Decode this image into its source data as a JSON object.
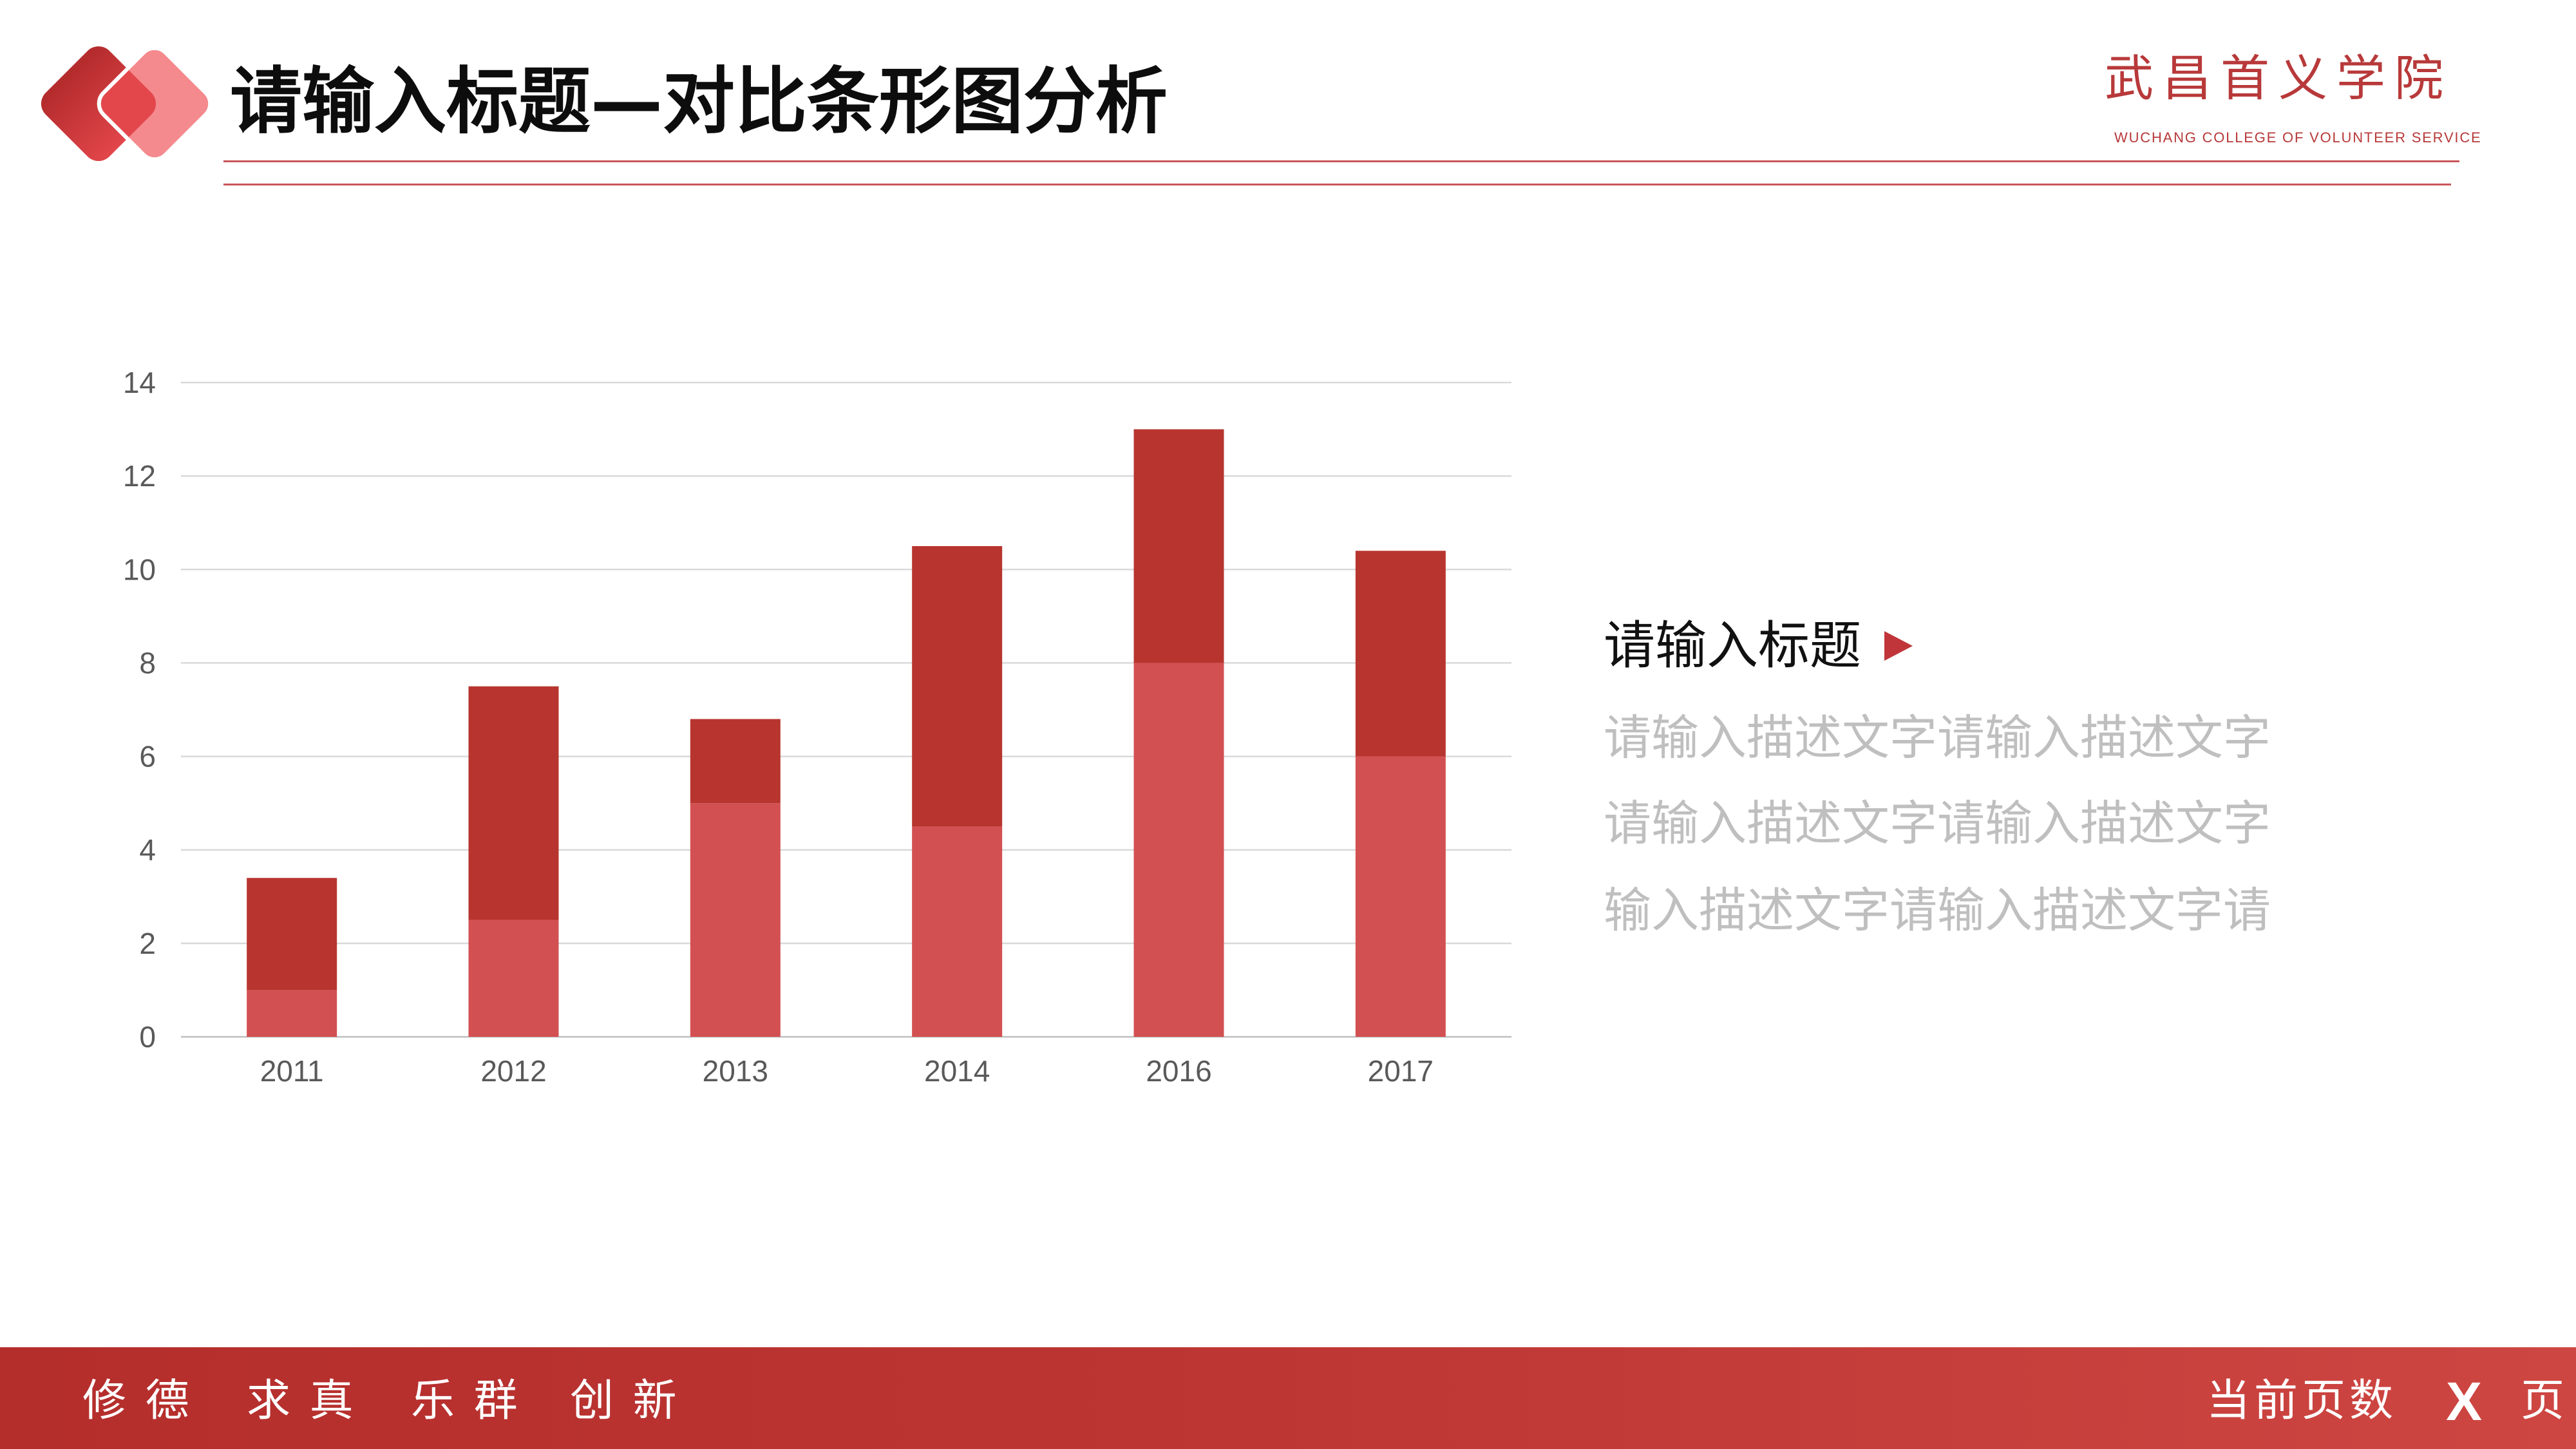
{
  "header": {
    "title": "请输入标题—对比条形图分析",
    "brand_name": "武昌首义学院",
    "brand_subtitle": "WUCHANG COLLEGE OF VOLUNTEER SERVICE",
    "logo_icon": "double-diamond-logo"
  },
  "colors": {
    "accent": "#B8352F",
    "accent_light": "#D35052",
    "brand_red": "#B8393A",
    "text_muted": "#BFBFBF",
    "footer_band": "#BD3533"
  },
  "chart_data": {
    "type": "bar",
    "stacked": true,
    "categories": [
      "2011",
      "2012",
      "2013",
      "2014",
      "2016",
      "2017"
    ],
    "series": [
      {
        "values": [
          1,
          2.5,
          5,
          4.5,
          8,
          6
        ],
        "color": "#D35052"
      },
      {
        "values": [
          2.4,
          5,
          1.8,
          6,
          5,
          4.4
        ],
        "color": "#B8352F"
      }
    ],
    "ylim": [
      0,
      14
    ],
    "y_ticks": [
      0,
      2,
      4,
      6,
      8,
      10,
      12,
      14
    ],
    "grid": true
  },
  "side_panel": {
    "heading": "请输入标题",
    "heading_icon": "play-triangle-icon",
    "lines": [
      "请输入描述文字请输入描述文字",
      "请输入描述文字请输入描述文字",
      "输入描述文字请输入描述文字请"
    ]
  },
  "footer": {
    "mottos": [
      "修 德",
      "求 真",
      "乐 群",
      "创 新"
    ],
    "page_label": "当前页数",
    "page_number": "X",
    "page_suffix": "页"
  }
}
